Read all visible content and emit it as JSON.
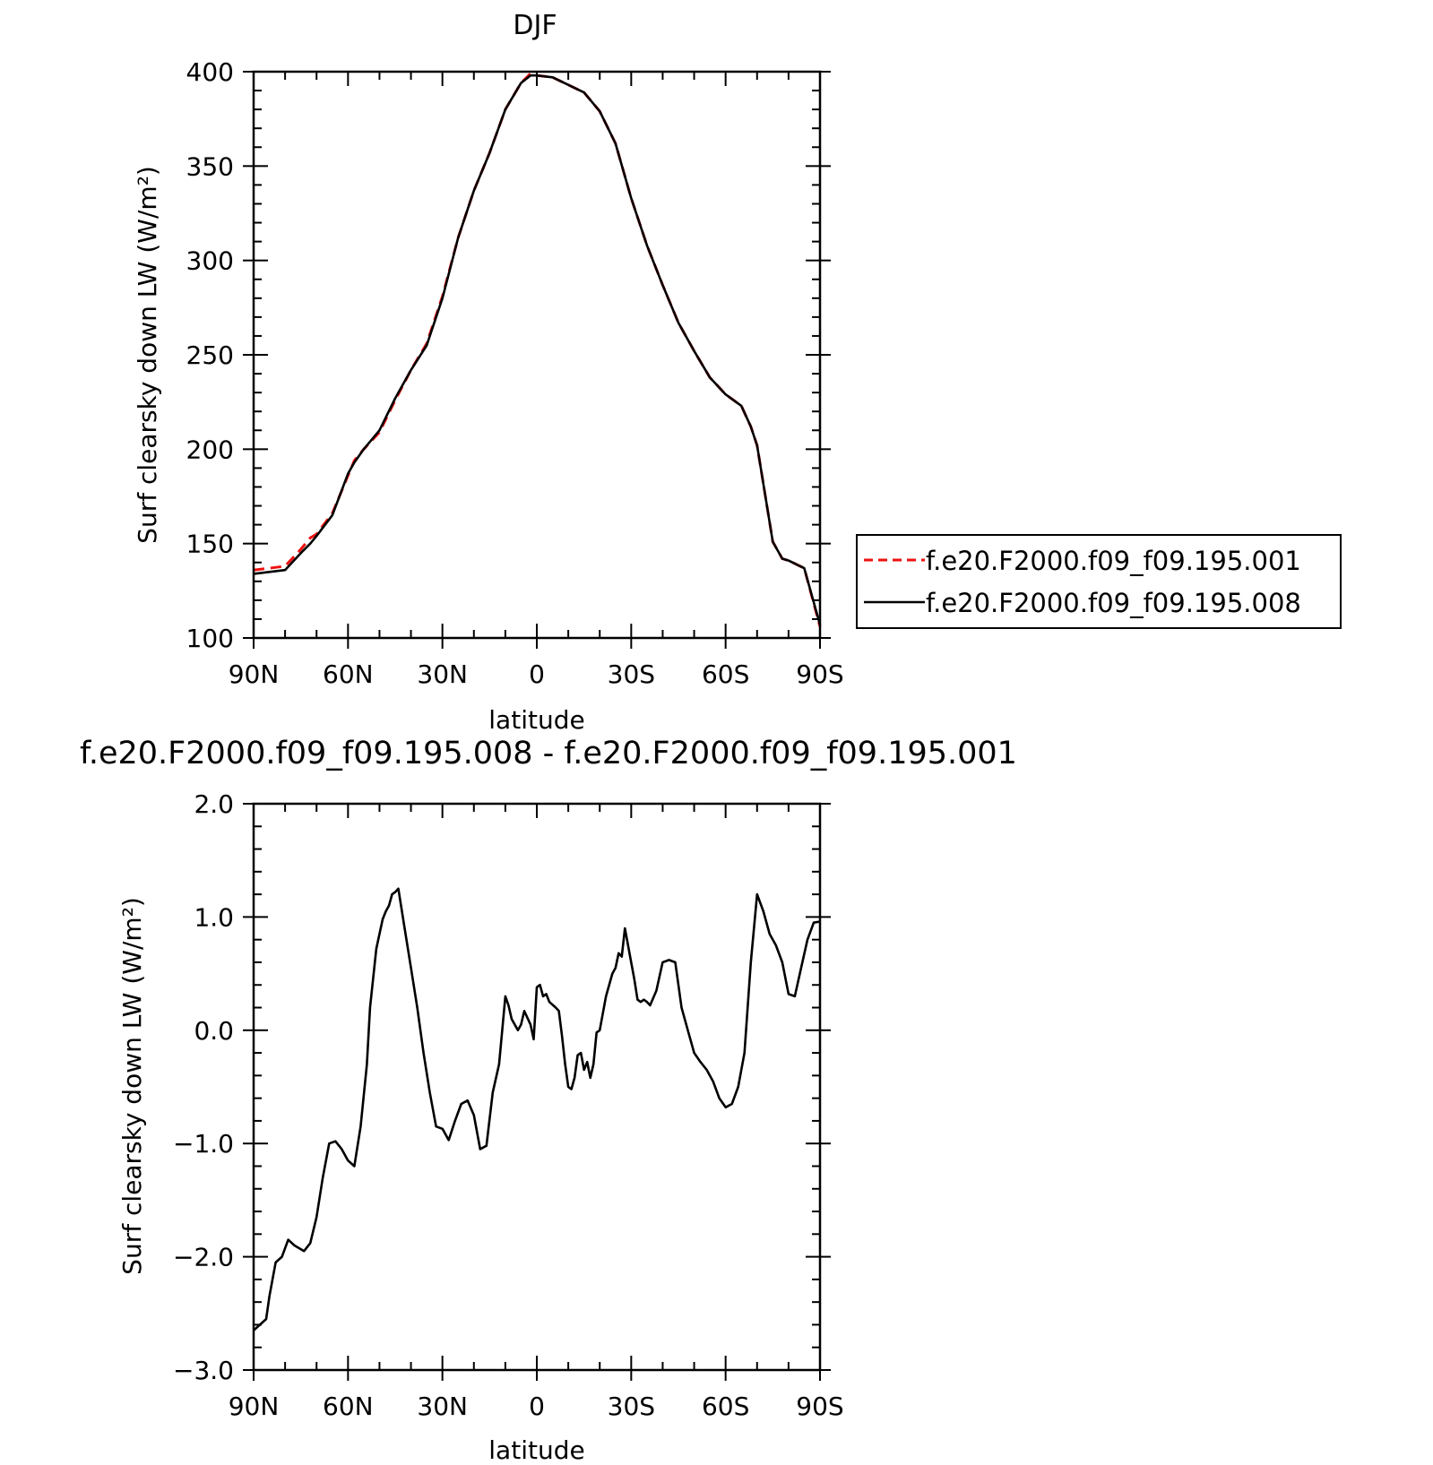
{
  "colors": {
    "series_a": "#ee1111",
    "series_b": "#000000",
    "axes": "#000000",
    "background": "#ffffff"
  },
  "chart_data": [
    {
      "type": "line",
      "title": "DJF",
      "xlabel": "latitude",
      "ylabel": "Surf clearsky down LW (W/m²)",
      "xlim": [
        90,
        -90
      ],
      "ylim": [
        100,
        400
      ],
      "x_ticks": [
        90,
        60,
        30,
        0,
        -30,
        -60,
        -90
      ],
      "x_tick_labels": [
        "90N",
        "60N",
        "30N",
        "0",
        "30S",
        "60S",
        "90S"
      ],
      "y_ticks": [
        100,
        150,
        200,
        250,
        300,
        350,
        400
      ],
      "y_tick_labels": [
        "100",
        "150",
        "200",
        "250",
        "300",
        "350",
        "400"
      ],
      "legend": "outside-right",
      "grid": false,
      "series": [
        {
          "name": "f.e20.F2000.f09_f09.195.001",
          "style": "dashed",
          "x": [
            90,
            85,
            80,
            75,
            72,
            70,
            65,
            60,
            58,
            55,
            50,
            45,
            40,
            35,
            30,
            25,
            20,
            15,
            10,
            5,
            2,
            0,
            -5,
            -10,
            -15,
            -20,
            -25,
            -30,
            -35,
            -40,
            -45,
            -50,
            -55,
            -60,
            -65,
            -68,
            -70,
            -75,
            -78,
            -80,
            -85,
            -90
          ],
          "values": [
            136,
            137,
            138,
            147,
            153,
            155,
            166,
            186,
            194,
            200,
            209,
            226,
            242,
            256,
            281,
            312,
            337,
            357,
            380,
            394,
            399,
            398,
            397,
            393,
            389,
            379,
            362,
            333,
            308,
            287,
            267,
            252,
            238,
            229,
            223,
            212,
            202,
            151,
            142,
            141,
            137,
            106
          ]
        },
        {
          "name": "f.e20.F2000.f09_f09.195.008",
          "style": "solid",
          "x": [
            90,
            85,
            80,
            75,
            72,
            70,
            65,
            60,
            58,
            55,
            50,
            45,
            40,
            35,
            30,
            25,
            20,
            15,
            10,
            5,
            2,
            0,
            -5,
            -10,
            -15,
            -20,
            -25,
            -30,
            -35,
            -40,
            -45,
            -50,
            -55,
            -60,
            -65,
            -68,
            -70,
            -75,
            -78,
            -80,
            -85,
            -90
          ],
          "values": [
            134,
            135,
            136,
            145,
            150,
            154,
            165,
            187,
            193,
            200,
            210,
            227,
            242,
            255,
            280,
            312,
            337,
            357,
            380,
            394,
            398,
            398,
            397,
            393,
            389,
            379,
            362,
            333,
            308,
            287,
            267,
            252,
            238,
            229,
            223,
            212,
            202,
            151,
            142,
            141,
            137,
            107
          ]
        }
      ]
    },
    {
      "type": "line",
      "title": "f.e20.F2000.f09_f09.195.008 - f.e20.F2000.f09_f09.195.001",
      "xlabel": "latitude",
      "ylabel": "Surf clearsky down LW (W/m²)",
      "xlim": [
        90,
        -90
      ],
      "ylim": [
        -3.0,
        2.0
      ],
      "x_ticks": [
        90,
        60,
        30,
        0,
        -30,
        -60,
        -90
      ],
      "x_tick_labels": [
        "90N",
        "60N",
        "30N",
        "0",
        "30S",
        "60S",
        "90S"
      ],
      "y_ticks": [
        -3.0,
        -2.0,
        -1.0,
        0.0,
        1.0,
        2.0
      ],
      "y_tick_labels": [
        "−3.0",
        "−2.0",
        "−1.0",
        "0.0",
        "1.0",
        "2.0"
      ],
      "grid": false,
      "series": [
        {
          "style": "solid",
          "x": [
            90,
            86,
            85,
            83,
            81,
            79,
            77,
            74,
            72,
            70,
            68,
            66,
            64,
            62,
            60,
            58,
            56,
            54,
            53,
            51,
            49,
            48,
            47,
            46,
            45,
            44,
            42,
            40,
            38,
            36,
            34,
            32,
            30,
            28,
            26,
            24,
            22,
            20,
            18,
            16,
            14,
            12,
            10,
            9,
            8,
            6,
            5,
            4,
            2,
            1,
            0,
            -1,
            -2,
            -3,
            -4,
            -6,
            -7,
            -8,
            -9,
            -10,
            -11,
            -12,
            -13,
            -14,
            -15,
            -16,
            -17,
            -18,
            -19,
            -20,
            -22,
            -24,
            -25,
            -26,
            -27,
            -28,
            -30,
            -31,
            -32,
            -33,
            -34,
            -35,
            -36,
            -38,
            -40,
            -42,
            -44,
            -46,
            -48,
            -50,
            -52,
            -54,
            -56,
            -58,
            -60,
            -62,
            -64,
            -66,
            -68,
            -70,
            -72,
            -74,
            -76,
            -78,
            -80,
            -82,
            -84,
            -86,
            -88,
            -90
          ],
          "values": [
            -2.65,
            -2.55,
            -2.35,
            -2.05,
            -2.0,
            -1.85,
            -1.9,
            -1.95,
            -1.88,
            -1.65,
            -1.3,
            -1.0,
            -0.98,
            -1.05,
            -1.15,
            -1.2,
            -0.85,
            -0.3,
            0.2,
            0.72,
            0.98,
            1.05,
            1.1,
            1.2,
            1.22,
            1.25,
            0.9,
            0.55,
            0.2,
            -0.2,
            -0.55,
            -0.85,
            -0.87,
            -0.97,
            -0.8,
            -0.65,
            -0.62,
            -0.75,
            -1.05,
            -1.02,
            -0.55,
            -0.3,
            0.3,
            0.22,
            0.1,
            0.0,
            0.05,
            0.17,
            0.05,
            -0.08,
            0.38,
            0.4,
            0.3,
            0.32,
            0.25,
            0.2,
            0.17,
            -0.05,
            -0.3,
            -0.5,
            -0.52,
            -0.42,
            -0.22,
            -0.2,
            -0.35,
            -0.28,
            -0.42,
            -0.3,
            -0.02,
            0.0,
            0.3,
            0.5,
            0.55,
            0.68,
            0.65,
            0.9,
            0.6,
            0.45,
            0.27,
            0.25,
            0.27,
            0.25,
            0.22,
            0.35,
            0.6,
            0.62,
            0.6,
            0.2,
            0.0,
            -0.2,
            -0.28,
            -0.35,
            -0.45,
            -0.6,
            -0.68,
            -0.65,
            -0.5,
            -0.2,
            0.6,
            1.2,
            1.05,
            0.85,
            0.75,
            0.6,
            0.32,
            0.3,
            0.55,
            0.8,
            0.95,
            0.96
          ]
        }
      ]
    }
  ]
}
